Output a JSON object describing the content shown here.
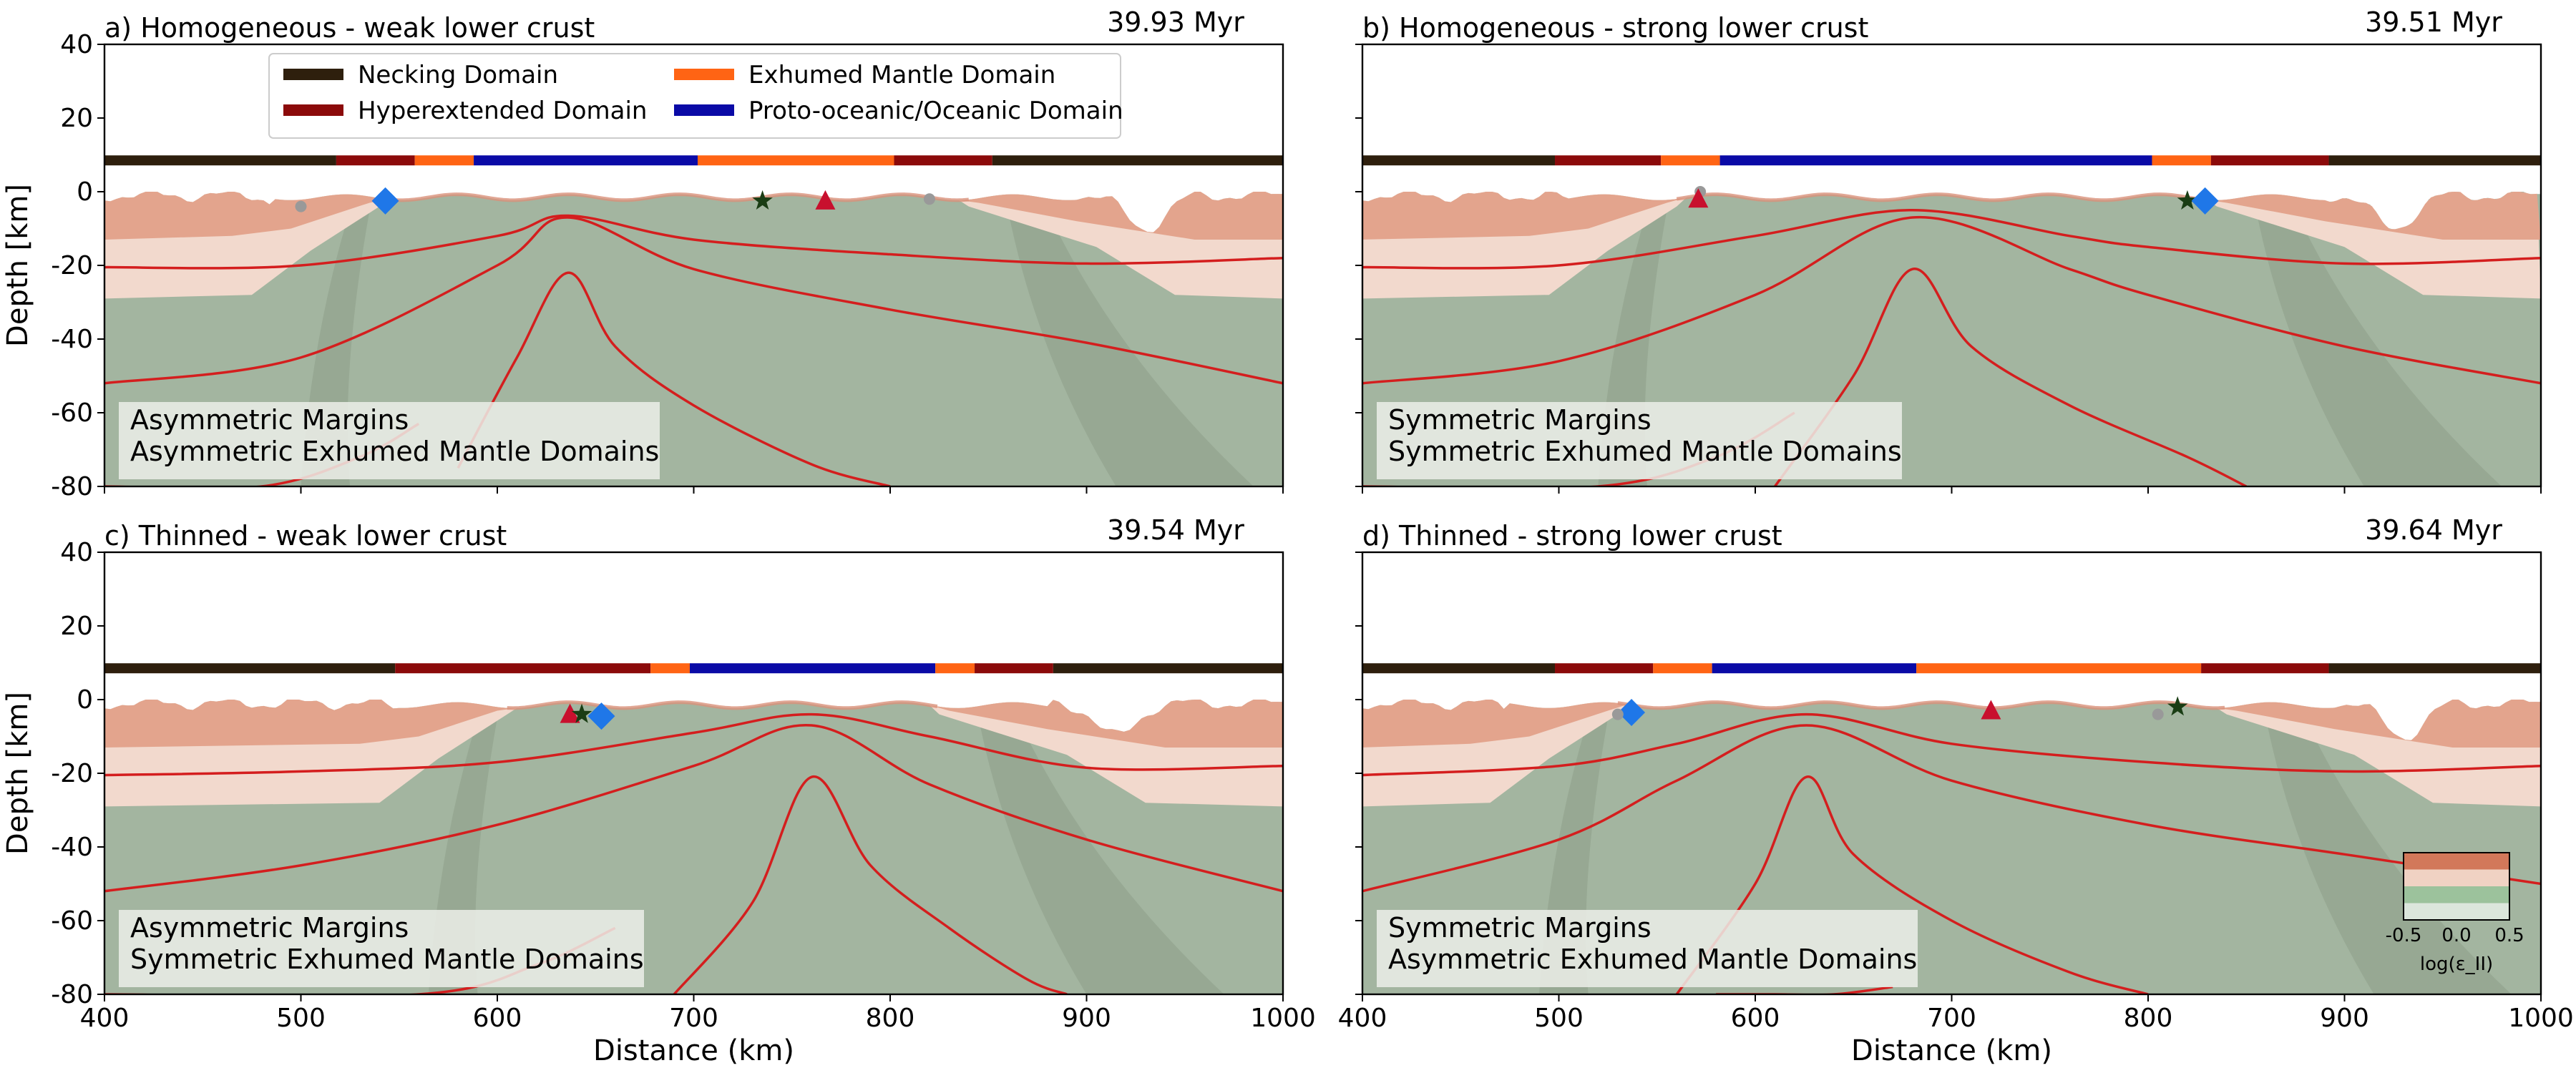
{
  "figure": {
    "xlabel": "Distance (km)",
    "ylabel": "Depth [km]",
    "xticks": [
      400,
      500,
      600,
      700,
      800,
      900,
      1000
    ],
    "yticks": [
      40,
      20,
      0,
      -20,
      -40,
      -60,
      -80
    ],
    "xlim": [
      400,
      1000
    ],
    "ylim": [
      -80,
      40
    ]
  },
  "legend": {
    "placement": "top, inside panel a",
    "entries": [
      {
        "label": "Necking Domain",
        "color": "#2e1f0d"
      },
      {
        "label": "Hyperextended Domain",
        "color": "#8b0a0a"
      },
      {
        "label": "Exhumed Mantle Domain",
        "color": "#ff6414"
      },
      {
        "label": "Proto-oceanic/Oceanic Domain",
        "color": "#0a0aa6"
      }
    ]
  },
  "colorbar": {
    "label": "log(ε_II)",
    "ticks": [
      "-0.5",
      "0.0",
      "0.5"
    ],
    "colors": [
      "#dce6dc",
      "#9cc29c",
      "#f0d2c3",
      "#d2785a"
    ]
  },
  "colors": {
    "mantle": "#a3b5a0",
    "lower_crust": "#f2d9cd",
    "upper_crust": "#e3a48d",
    "isotherm": "#d41e1e",
    "box_bg": "#ecefe9"
  },
  "chart_data": [
    {
      "type": "area",
      "title": "a) Homogeneous - weak lower crust",
      "time": "39.93 Myr",
      "annotation": [
        "Asymmetric Margins",
        "Asymmetric Exhumed Mantle Domains"
      ],
      "show_legend": true,
      "domain_bar": [
        {
          "from": 400,
          "to": 518,
          "domain": 0
        },
        {
          "from": 518,
          "to": 558,
          "domain": 1
        },
        {
          "from": 558,
          "to": 588,
          "domain": 2
        },
        {
          "from": 588,
          "to": 702,
          "domain": 3
        },
        {
          "from": 702,
          "to": 802,
          "domain": 2
        },
        {
          "from": 802,
          "to": 852,
          "domain": 1
        },
        {
          "from": 852,
          "to": 1000,
          "domain": 0
        }
      ],
      "breakup_left": 545,
      "breakup_right": 835,
      "markers": [
        {
          "type": "diamond",
          "x": 543,
          "y": -2.5,
          "color": "#1f77e8"
        },
        {
          "type": "star",
          "x": 735,
          "y": -2.5,
          "color": "#1a3d14"
        },
        {
          "type": "triangle",
          "x": 767,
          "y": -2.5,
          "color": "#c8102e"
        },
        {
          "type": "dot",
          "x": 500,
          "y": -4,
          "color": "#999999"
        },
        {
          "type": "dot",
          "x": 820,
          "y": -2,
          "color": "#999999"
        }
      ],
      "isotherms": [
        {
          "x": [
            400,
            500,
            600,
            636,
            700,
            800,
            900,
            1000
          ],
          "y": [
            -20.5,
            -20,
            -12,
            -6.5,
            -13,
            -17,
            -19.5,
            -18
          ]
        },
        {
          "x": [
            400,
            500,
            600,
            636,
            700,
            800,
            900,
            1000
          ],
          "y": [
            -52,
            -45,
            -20,
            -7,
            -21,
            -32,
            -41,
            -52
          ]
        },
        {
          "x": [
            580,
            610,
            636,
            660,
            700,
            760,
            800
          ],
          "y": [
            -75,
            -45,
            -22,
            -42,
            -58,
            -74,
            -80
          ]
        },
        {
          "x": [
            400,
            480,
            530,
            560
          ],
          "y": [
            -80,
            -80,
            -72,
            -63
          ]
        }
      ]
    },
    {
      "type": "area",
      "title": "b) Homogeneous - strong lower crust",
      "time": "39.51 Myr",
      "annotation": [
        "Symmetric Margins",
        "Symmetric Exhumed Mantle Domains"
      ],
      "show_legend": false,
      "domain_bar": [
        {
          "from": 400,
          "to": 498,
          "domain": 0
        },
        {
          "from": 498,
          "to": 552,
          "domain": 1
        },
        {
          "from": 552,
          "to": 582,
          "domain": 2
        },
        {
          "from": 582,
          "to": 802,
          "domain": 3
        },
        {
          "from": 802,
          "to": 832,
          "domain": 2
        },
        {
          "from": 832,
          "to": 892,
          "domain": 1
        },
        {
          "from": 892,
          "to": 1000,
          "domain": 0
        }
      ],
      "breakup_left": 565,
      "breakup_right": 830,
      "markers": [
        {
          "type": "dot",
          "x": 572,
          "y": 0,
          "color": "#999999"
        },
        {
          "type": "triangle",
          "x": 571,
          "y": -2,
          "color": "#c8102e"
        },
        {
          "type": "star",
          "x": 820,
          "y": -2.5,
          "color": "#1a3d14"
        },
        {
          "type": "diamond",
          "x": 829,
          "y": -2.5,
          "color": "#1f77e8"
        }
      ],
      "isotherms": [
        {
          "x": [
            400,
            500,
            600,
            680,
            760,
            800,
            900,
            1000
          ],
          "y": [
            -20.5,
            -20,
            -12,
            -5,
            -12,
            -15,
            -19.5,
            -18
          ]
        },
        {
          "x": [
            400,
            500,
            600,
            680,
            760,
            800,
            900,
            1000
          ],
          "y": [
            -52,
            -46,
            -28,
            -7,
            -21,
            -28,
            -42,
            -52
          ]
        },
        {
          "x": [
            610,
            650,
            680,
            710,
            760,
            820,
            850
          ],
          "y": [
            -80,
            -50,
            -21,
            -42,
            -58,
            -72,
            -80
          ]
        },
        {
          "x": [
            400,
            520,
            580,
            620
          ],
          "y": [
            -80,
            -80,
            -72,
            -60
          ]
        }
      ]
    },
    {
      "type": "area",
      "title": "c) Thinned - weak lower crust",
      "time": "39.54 Myr",
      "annotation": [
        "Asymmetric Margins",
        "Symmetric Exhumed Mantle Domains"
      ],
      "show_legend": false,
      "domain_bar": [
        {
          "from": 400,
          "to": 548,
          "domain": 0
        },
        {
          "from": 548,
          "to": 678,
          "domain": 1
        },
        {
          "from": 678,
          "to": 698,
          "domain": 2
        },
        {
          "from": 698,
          "to": 823,
          "domain": 3
        },
        {
          "from": 823,
          "to": 843,
          "domain": 2
        },
        {
          "from": 843,
          "to": 883,
          "domain": 1
        },
        {
          "from": 883,
          "to": 1000,
          "domain": 0
        }
      ],
      "breakup_left": 610,
      "breakup_right": 820,
      "markers": [
        {
          "type": "triangle",
          "x": 637,
          "y": -4,
          "color": "#c8102e"
        },
        {
          "type": "star",
          "x": 643,
          "y": -4,
          "color": "#1a3d14"
        },
        {
          "type": "diamond",
          "x": 653,
          "y": -4.5,
          "color": "#1f77e8"
        }
      ],
      "isotherms": [
        {
          "x": [
            400,
            500,
            600,
            700,
            760,
            820,
            900,
            1000
          ],
          "y": [
            -20.5,
            -19.5,
            -17,
            -9,
            -4,
            -10,
            -18.5,
            -18
          ]
        },
        {
          "x": [
            400,
            500,
            600,
            700,
            760,
            820,
            900,
            1000
          ],
          "y": [
            -52,
            -45,
            -34,
            -18,
            -7,
            -23,
            -38,
            -52
          ]
        },
        {
          "x": [
            690,
            730,
            760,
            790,
            830,
            870,
            890
          ],
          "y": [
            -80,
            -55,
            -21,
            -45,
            -62,
            -76,
            -80
          ]
        },
        {
          "x": [
            400,
            560,
            620,
            660
          ],
          "y": [
            -80,
            -80,
            -72,
            -62
          ]
        }
      ]
    },
    {
      "type": "area",
      "title": "d) Thinned - strong lower crust",
      "time": "39.64 Myr",
      "annotation": [
        "Symmetric Margins",
        "Asymmetric Exhumed Mantle Domains"
      ],
      "show_legend": false,
      "domain_bar": [
        {
          "from": 400,
          "to": 498,
          "domain": 0
        },
        {
          "from": 498,
          "to": 548,
          "domain": 1
        },
        {
          "from": 548,
          "to": 578,
          "domain": 2
        },
        {
          "from": 578,
          "to": 682,
          "domain": 3
        },
        {
          "from": 682,
          "to": 827,
          "domain": 2
        },
        {
          "from": 827,
          "to": 892,
          "domain": 1
        },
        {
          "from": 892,
          "to": 1000,
          "domain": 0
        }
      ],
      "breakup_left": 535,
      "breakup_right": 835,
      "markers": [
        {
          "type": "diamond",
          "x": 537,
          "y": -3.5,
          "color": "#1f77e8"
        },
        {
          "type": "dot",
          "x": 530,
          "y": -4,
          "color": "#999999"
        },
        {
          "type": "triangle",
          "x": 720,
          "y": -3,
          "color": "#c8102e"
        },
        {
          "type": "dot",
          "x": 805,
          "y": -4,
          "color": "#999999"
        },
        {
          "type": "star",
          "x": 815,
          "y": -2,
          "color": "#1a3d14"
        }
      ],
      "isotherms": [
        {
          "x": [
            400,
            500,
            560,
            626,
            700,
            800,
            900,
            1000
          ],
          "y": [
            -20.5,
            -18,
            -12,
            -4,
            -12,
            -17,
            -19.5,
            -18
          ]
        },
        {
          "x": [
            400,
            500,
            560,
            626,
            700,
            800,
            900,
            1000
          ],
          "y": [
            -52,
            -38,
            -22,
            -7,
            -22,
            -34,
            -42,
            -50
          ]
        },
        {
          "x": [
            560,
            600,
            626,
            650,
            700,
            760,
            800
          ],
          "y": [
            -80,
            -50,
            -21,
            -42,
            -60,
            -74,
            -80
          ]
        },
        {
          "x": [
            580,
            610,
            640,
            670
          ],
          "y": [
            -80,
            -80,
            -80,
            -78
          ]
        }
      ]
    }
  ]
}
